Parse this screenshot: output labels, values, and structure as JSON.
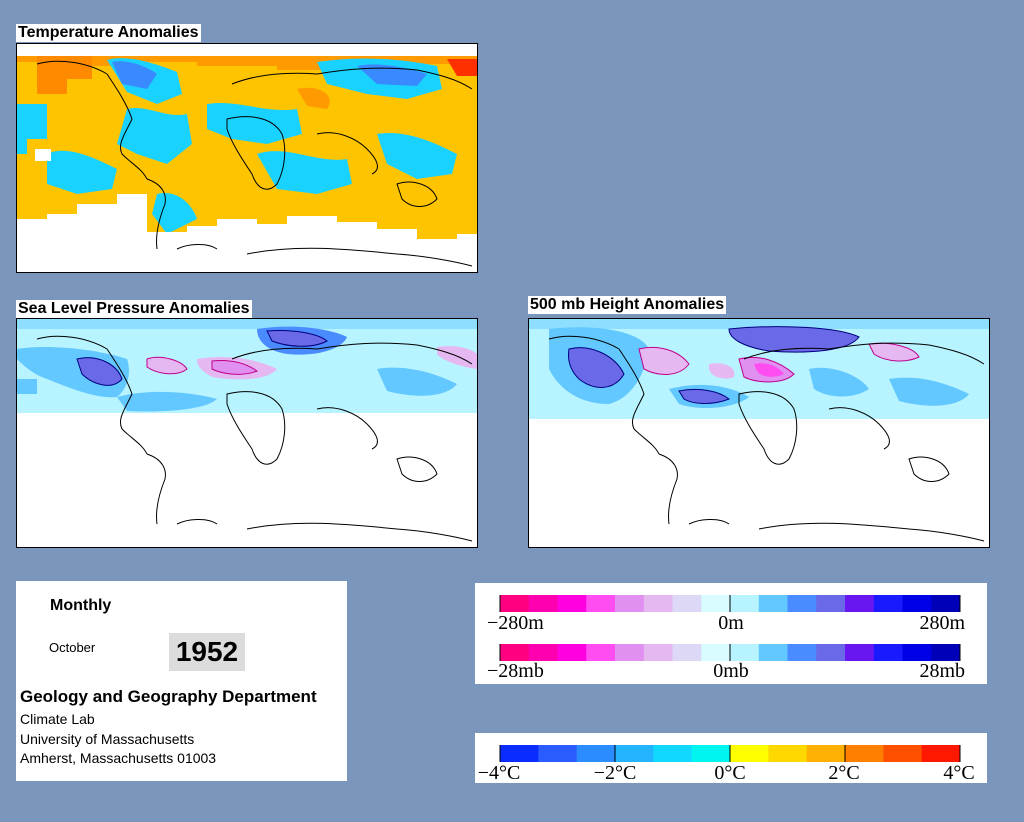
{
  "panels": {
    "temperature": {
      "title": "Temperature Anomalies"
    },
    "pressure": {
      "title": "Sea Level Pressure Anomalies"
    },
    "height": {
      "title": "500 mb Height Anomalies"
    }
  },
  "info": {
    "period": "Monthly",
    "month": "October",
    "year": "1952",
    "department": "Geology and Geography Department",
    "lab": "Climate Lab",
    "university": "University of Massachusetts",
    "address": "Amherst, Massachusetts 01003"
  },
  "legend_height": {
    "labels": [
      "−280m",
      "0m",
      "280m"
    ],
    "colors": [
      "#ff0080",
      "#ff00b0",
      "#ff00e0",
      "#ff4df2",
      "#e090f0",
      "#e6b8f2",
      "#ddd8f5",
      "#d8fcff",
      "#b8f4ff",
      "#62c8ff",
      "#4a8cff",
      "#6a6ae8",
      "#6a16f0",
      "#1a1aff",
      "#0000e6",
      "#0000b8"
    ]
  },
  "legend_pressure": {
    "labels": [
      "−28mb",
      "0mb",
      "28mb"
    ],
    "colors": [
      "#ff0080",
      "#ff00b0",
      "#ff00e0",
      "#ff4df2",
      "#e090f0",
      "#e6b8f2",
      "#ddd8f5",
      "#d8fcff",
      "#b8f4ff",
      "#62c8ff",
      "#4a8cff",
      "#6a6ae8",
      "#6a16f0",
      "#1a1aff",
      "#0000e6",
      "#0000b8"
    ]
  },
  "legend_temperature": {
    "labels": [
      "−4°C",
      "−2°C",
      "0°C",
      "2°C",
      "4°C"
    ],
    "colors": [
      "#0a2cff",
      "#2a5cff",
      "#2a8cff",
      "#22b4ff",
      "#10d8ff",
      "#00f4f0",
      "#ffff00",
      "#ffd800",
      "#ffb000",
      "#ff8000",
      "#ff5000",
      "#ff1800"
    ]
  }
}
